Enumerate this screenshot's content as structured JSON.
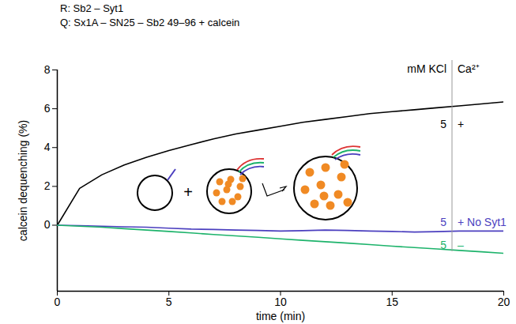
{
  "chart_data": {
    "type": "line",
    "annotations": [
      "R: Sb2 – Syt1",
      "Q: Sx1A – SN25 – Sb2 49–96 + calcein"
    ],
    "x_label": "time (min)",
    "y_label": "calcein dequenching (%)",
    "label_headers": [
      "mM KCl",
      "Ca²⁺"
    ],
    "x": [
      0,
      1,
      2,
      3,
      4,
      5,
      6,
      7,
      8,
      9,
      10,
      11,
      12,
      13,
      14,
      15,
      16,
      17,
      18,
      19,
      20
    ],
    "series": [
      {
        "kcl": "5",
        "ca": "+",
        "color": "#000000",
        "values": [
          0,
          1.9,
          2.6,
          3.1,
          3.5,
          3.85,
          4.15,
          4.45,
          4.7,
          4.9,
          5.1,
          5.3,
          5.45,
          5.6,
          5.75,
          5.85,
          5.95,
          6.05,
          6.15,
          6.25,
          6.35
        ]
      },
      {
        "kcl": "5",
        "ca": "+ No Syt1",
        "color": "#4b3fbf",
        "values": [
          0,
          -0.02,
          -0.05,
          -0.08,
          -0.1,
          -0.15,
          -0.2,
          -0.22,
          -0.25,
          -0.27,
          -0.3,
          -0.28,
          -0.25,
          -0.27,
          -0.3,
          -0.32,
          -0.35,
          -0.33,
          -0.3,
          -0.3,
          -0.3
        ]
      },
      {
        "kcl": "5",
        "ca": "–",
        "color": "#1db36b",
        "values": [
          0,
          -0.05,
          -0.1,
          -0.18,
          -0.25,
          -0.32,
          -0.4,
          -0.48,
          -0.55,
          -0.62,
          -0.7,
          -0.78,
          -0.85,
          -0.92,
          -1.0,
          -1.08,
          -1.15,
          -1.22,
          -1.3,
          -1.37,
          -1.45
        ]
      }
    ],
    "xlim": [
      0,
      20
    ],
    "xticks": [
      0,
      5,
      10,
      15,
      20
    ],
    "ylim": [
      -3.4,
      8
    ],
    "yticks": [
      0,
      2,
      4,
      6,
      8
    ],
    "grid": false
  }
}
